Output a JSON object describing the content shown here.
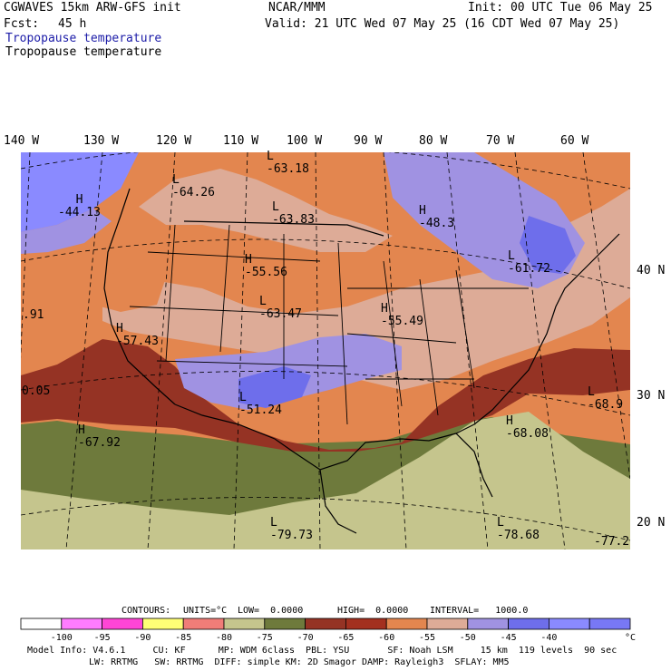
{
  "header": {
    "model": "CGWAVES 15km ARW-GFS init",
    "org": "NCAR/MMM",
    "init": "Init: 00 UTC Tue 06 May 25",
    "fcst_label": "Fcst:",
    "fcst_value": "45 h",
    "valid": "Valid: 21 UTC Wed 07 May 25 (16 CDT Wed 07 May 25)",
    "field1": "Tropopause temperature",
    "field2": "Tropopause temperature"
  },
  "lon_labels": [
    "140 W",
    "130 W",
    "120 W",
    "110 W",
    "100 W",
    "90 W",
    "80 W",
    "70 W",
    "60 W"
  ],
  "lat_labels": [
    "40 N",
    "30 N",
    "20 N"
  ],
  "map_labels": [
    {
      "kind": "H",
      "value": "-44.13"
    },
    {
      "kind": "L",
      "value": "-64.26"
    },
    {
      "kind": "L",
      "value": "-63.18"
    },
    {
      "kind": "L",
      "value": "-63.83"
    },
    {
      "kind": "H",
      "value": "-48.3"
    },
    {
      "kind": "L",
      "value": "-61.72"
    },
    {
      "kind": "H",
      "value": "-55.56"
    },
    {
      "kind": "L",
      "value": "-63.47"
    },
    {
      "kind": "H",
      "value": "-55.49"
    },
    {
      "kind": "H",
      "value": "-57.43"
    },
    {
      "kind": "L",
      "value": "-51.24"
    },
    {
      "kind": "H",
      "value": "-67.92"
    },
    {
      "kind": "H",
      "value": "-68.08"
    },
    {
      "kind": "L",
      "value": "-68.9"
    },
    {
      "kind": "L",
      "value": "-79.73"
    },
    {
      "kind": "L",
      "value": "-78.68"
    }
  ],
  "edge_labels": [
    ".91",
    "0.05",
    "-77.2"
  ],
  "contours": {
    "label": "CONTOURS:",
    "units": "UNITS=°C",
    "low": "LOW=  0.0000",
    "high": "HIGH=  0.0000",
    "interval": "INTERVAL=   1000.0"
  },
  "colorbar": {
    "colors": [
      "#ffffff",
      "#ff7cff",
      "#ff45d6",
      "#ffff76",
      "#f07d78",
      "#c5c58d",
      "#6e7a3c",
      "#953324",
      "#a3301f",
      "#e3864f",
      "#ddab97",
      "#a092e2",
      "#6e6eeb",
      "#8a8aff",
      "#7878f5"
    ],
    "ticks": [
      "-100",
      "-95",
      "-90",
      "-85",
      "-80",
      "-75",
      "-70",
      "-65",
      "-60",
      "-55",
      "-50",
      "-45",
      "-40"
    ],
    "unit": "°C"
  },
  "footer": {
    "line1": "Model Info: V4.6.1     CU: KF      MP: WDM 6class  PBL: YSU       SF: Noah LSM     15 km  119 levels  90 sec",
    "line2": "LW: RRTMG   SW: RRTMG  DIFF: simple KM: 2D Smagor DAMP: Rayleigh3  SFLAY: MM5"
  }
}
